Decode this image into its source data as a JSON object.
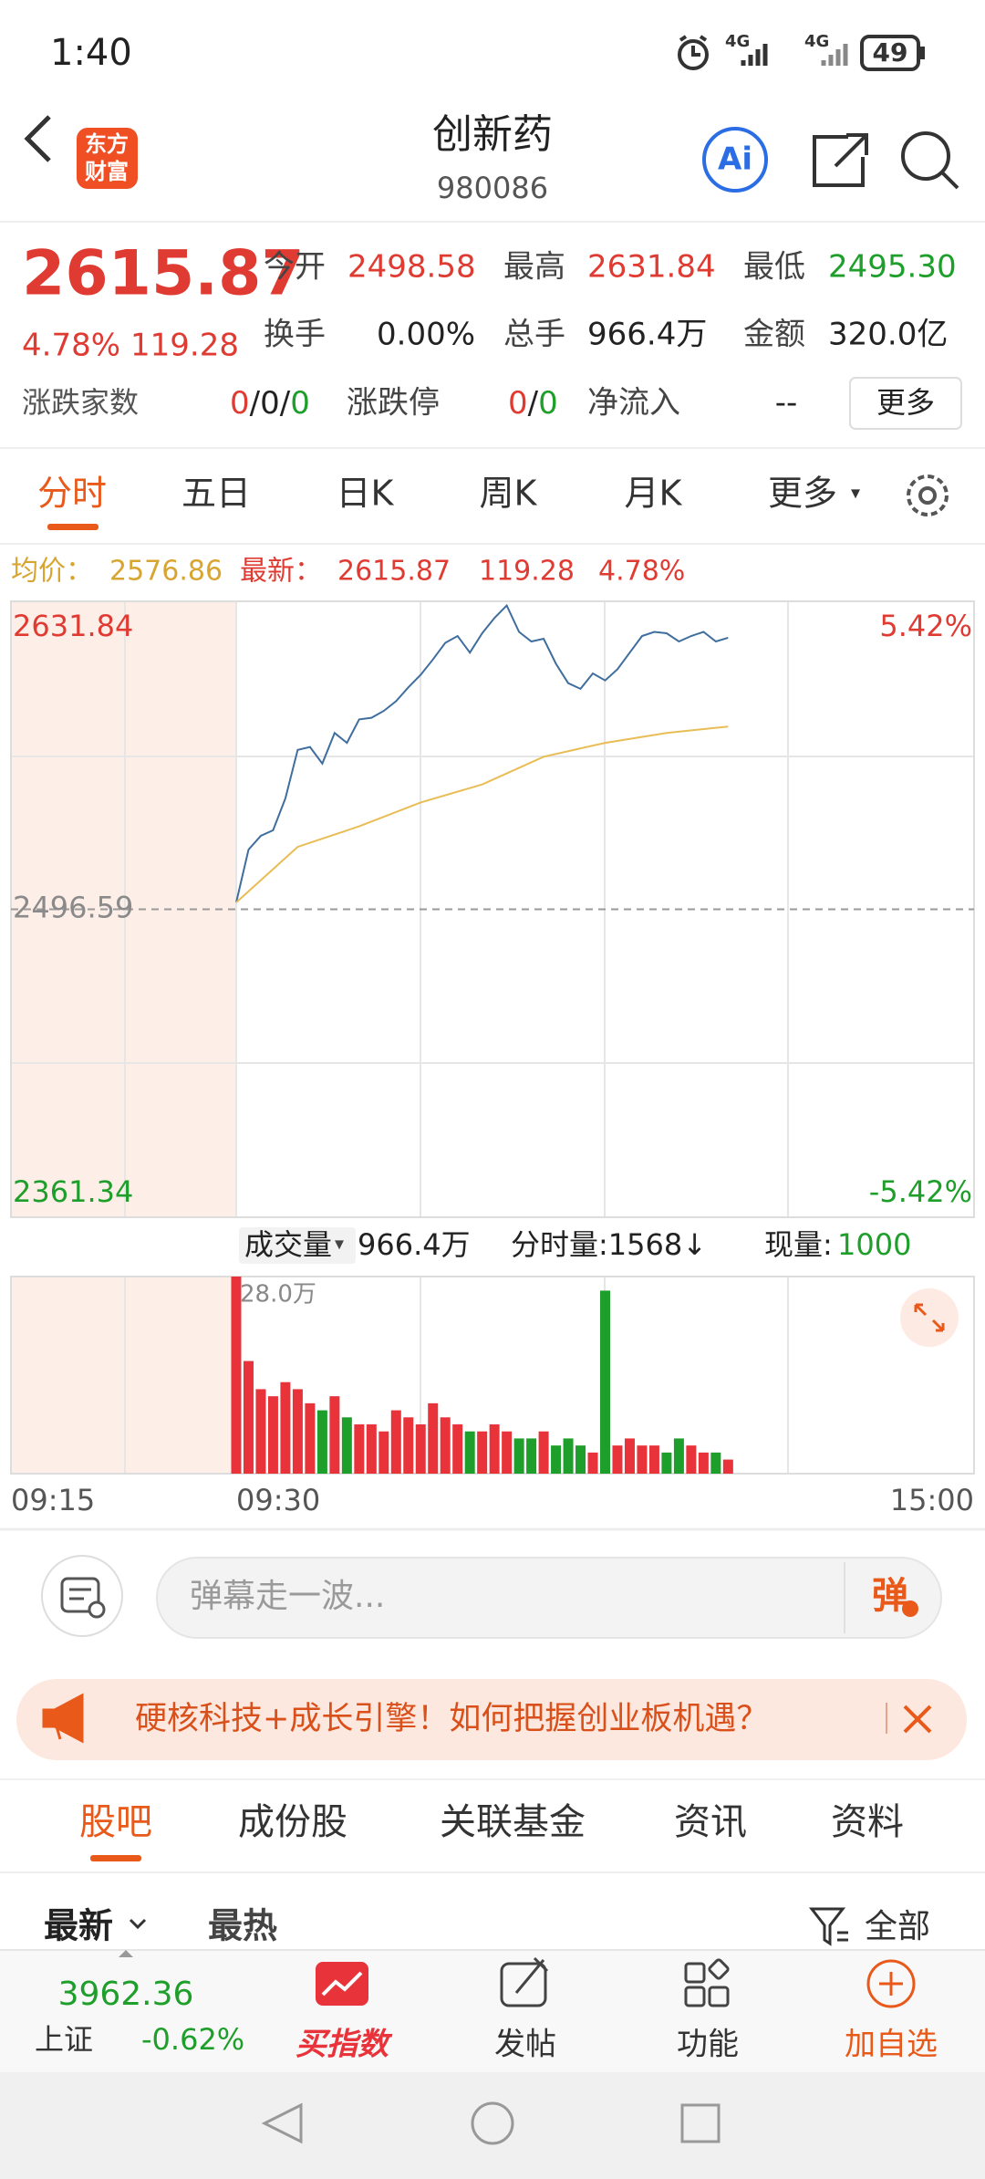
{
  "status_bar": {
    "time": "1:40",
    "network": [
      "4G",
      "4G"
    ],
    "battery": "49"
  },
  "header": {
    "logo": [
      "东方",
      "财富"
    ],
    "title": "创新药",
    "code": "980086",
    "ai": "Ai"
  },
  "quote": {
    "price": "2615.87",
    "change_pct": "4.78%",
    "change": "119.28",
    "fields": [
      {
        "label": "今开",
        "value": "2498.58"
      },
      {
        "label": "最高",
        "value": "2631.84"
      },
      {
        "label": "最低",
        "value": "2495.30"
      },
      {
        "label": "换手",
        "value": "0.00%"
      },
      {
        "label": "总手",
        "value": "966.4万"
      },
      {
        "label": "金额",
        "value": "320.0亿"
      }
    ],
    "breadth_label": "涨跌家数",
    "breadth": [
      "0",
      "/0/",
      "0"
    ],
    "limit_label": "涨跌停",
    "limit": [
      "0",
      "/",
      "0"
    ],
    "net_inflow_label": "净流入",
    "net_inflow": "--",
    "more": "更多"
  },
  "period_tabs": [
    "分时",
    "五日",
    "日K",
    "周K",
    "月K",
    "更多"
  ],
  "legend": {
    "avg_label": "均价：",
    "avg": "2576.86",
    "latest_label": "最新：",
    "latest": "2615.87",
    "change": "119.28",
    "change_pct": "4.78%"
  },
  "volume_info": {
    "label": "成交量",
    "total": "966.4万",
    "tick_volume": "分时量:1568↓",
    "current_label": "现量:",
    "current": "1000"
  },
  "premarket_time": "09:15",
  "chart_data": [
    {
      "type": "line",
      "xlim": [
        0,
        240
      ],
      "ylim": [
        2361.34,
        2631.84
      ],
      "yticks": [
        2361.34,
        2496.59,
        2631.84
      ],
      "y2lim": [
        -5.42,
        5.42
      ],
      "y2ticks": [
        {
          "value": -5.42,
          "label": "-5.42%"
        },
        {
          "value": 5.42,
          "label": "5.42%"
        }
      ],
      "xticks": [
        {
          "value": 0,
          "label": "09:30"
        },
        {
          "value": 240,
          "label": "15:00"
        }
      ],
      "series": [
        {
          "color": "#3f6e9e",
          "x": [
            0,
            4,
            8,
            12,
            16,
            20,
            24,
            28,
            32,
            36,
            40,
            44,
            48,
            52,
            56,
            60,
            64,
            68,
            72,
            76,
            80,
            84,
            88,
            92,
            96,
            100,
            104,
            108,
            112,
            116,
            120,
            124,
            128,
            132,
            136,
            140,
            144,
            148,
            152,
            156,
            160
          ],
          "values": [
            2499.6,
            2522.8,
            2528.9,
            2531.3,
            2545.3,
            2566.6,
            2567.9,
            2560.6,
            2574.0,
            2569.7,
            2580.0,
            2580.7,
            2583.7,
            2588.0,
            2594.1,
            2599.6,
            2606.3,
            2613.6,
            2616.6,
            2609.3,
            2617.8,
            2624.5,
            2630.0,
            2618.4,
            2614.2,
            2615.4,
            2604.4,
            2595.9,
            2593.4,
            2600.2,
            2597.1,
            2602.0,
            2609.3,
            2616.6,
            2618.4,
            2617.8,
            2614.2,
            2616.6,
            2618.4,
            2614.2,
            2615.87
          ]
        },
        {
          "color": "#e9bd55",
          "x": [
            0,
            20,
            40,
            60,
            80,
            100,
            120,
            140,
            160
          ],
          "values": [
            2499.6,
            2524.0,
            2533.0,
            2543.5,
            2551.4,
            2563.6,
            2569.7,
            2574.0,
            2576.86
          ]
        }
      ]
    },
    {
      "type": "bar",
      "xlim": [
        0,
        240
      ],
      "ylim": [
        0,
        28
      ],
      "yticks": [
        {
          "value": 28,
          "label": "28.0万"
        }
      ],
      "up_color": "#e8333a",
      "down_color": "#1e9e2a",
      "x": [
        0,
        4,
        8,
        12,
        16,
        20,
        24,
        28,
        32,
        36,
        40,
        44,
        48,
        52,
        56,
        60,
        64,
        68,
        72,
        76,
        80,
        84,
        88,
        92,
        96,
        100,
        104,
        108,
        112,
        116,
        120,
        124,
        128,
        132,
        136,
        140,
        144,
        148,
        152,
        156,
        160
      ],
      "values": [
        28,
        16,
        12,
        11,
        13,
        12,
        10,
        9,
        11,
        8,
        7,
        7,
        6,
        9,
        8,
        7,
        10,
        8,
        7,
        6,
        6,
        7,
        6,
        5,
        5,
        6,
        4,
        5,
        4,
        3,
        26,
        4,
        5,
        4,
        4,
        3,
        5,
        4,
        3,
        3,
        2
      ]
    }
  ],
  "comment": {
    "placeholder": "弹幕走一波...",
    "button": "弹"
  },
  "banner": "硬核科技+成长引擎！如何把握创业板机遇？",
  "section_tabs": [
    "股吧",
    "成份股",
    "关联基金",
    "资讯",
    "资料"
  ],
  "sort": {
    "options": [
      "最新",
      "最热"
    ],
    "filter": "全部"
  },
  "bottom_bar": {
    "index": {
      "value": "3962.36",
      "name": "上证",
      "change": "-0.62%"
    },
    "items": [
      "买指数",
      "发帖",
      "功能",
      "加自选"
    ]
  }
}
